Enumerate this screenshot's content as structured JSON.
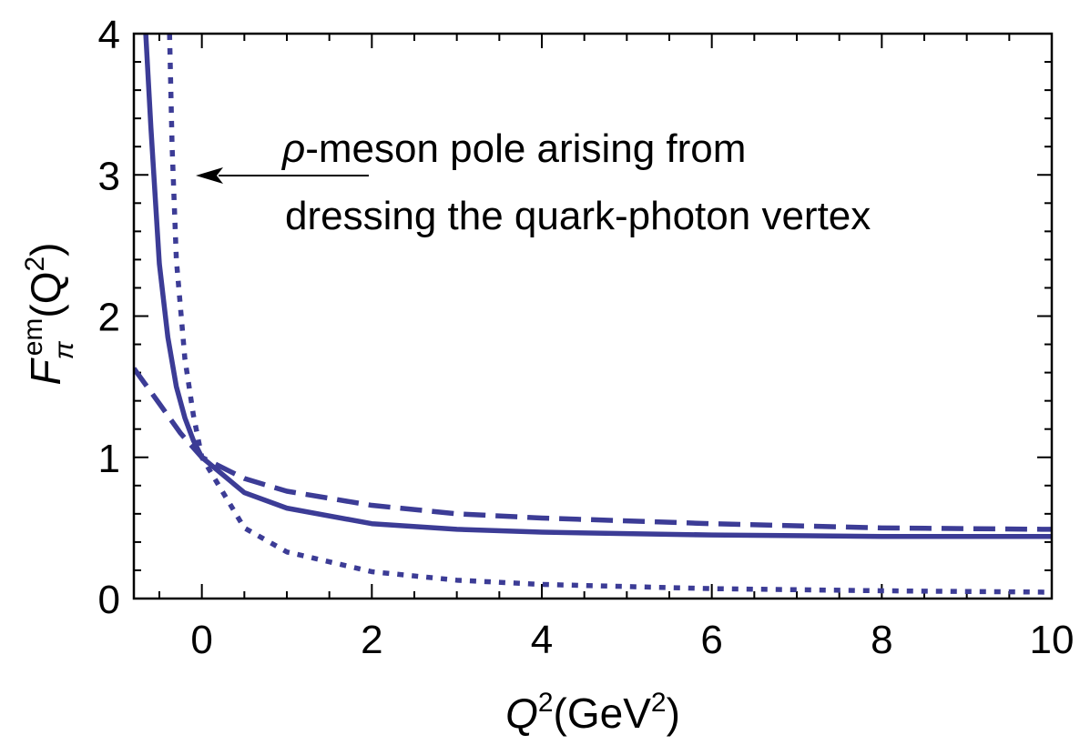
{
  "chart_data": {
    "type": "line",
    "xlabel": {
      "base": "Q",
      "sup": "2",
      "open": "(GeV",
      "unit_sup": "2",
      "close": ")"
    },
    "ylabel": {
      "base": "F",
      "sub": "π",
      "sup": "em",
      "open": "(Q",
      "arg_sup": "2",
      "close": ")"
    },
    "annotation": {
      "symbol": "ρ",
      "line1": "-meson pole arising from",
      "line2": "dressing the quark-photon vertex"
    },
    "xlim": [
      -0.8,
      10
    ],
    "ylim": [
      0,
      4
    ],
    "xticks": [
      0,
      2,
      4,
      6,
      8,
      10
    ],
    "yticks": [
      0,
      1,
      2,
      3,
      4
    ],
    "xminorticks": [
      -0.5,
      0.5,
      1,
      1.5,
      2.5,
      3,
      3.5,
      4.5,
      5,
      5.5,
      6.5,
      7,
      7.5,
      8.5,
      9,
      9.5
    ],
    "yminorticks": [
      0.2,
      0.4,
      0.6,
      0.8,
      1.2,
      1.4,
      1.6,
      1.8,
      2.2,
      2.4,
      2.6,
      2.8,
      3.2,
      3.4,
      3.6,
      3.8
    ],
    "series": [
      {
        "style": "solid",
        "color": "#3c3c96",
        "x": [
          -0.66,
          -0.6,
          -0.5,
          -0.4,
          -0.3,
          -0.2,
          -0.1,
          0,
          0.5,
          1,
          2,
          3,
          4,
          6,
          8,
          10
        ],
        "values": [
          4,
          3.34,
          2.37,
          1.85,
          1.5,
          1.28,
          1.12,
          1,
          0.75,
          0.64,
          0.53,
          0.49,
          0.47,
          0.45,
          0.44,
          0.44
        ]
      },
      {
        "style": "dashed",
        "color": "#3c3c96",
        "x": [
          -0.8,
          -0.5,
          -0.25,
          0,
          0.5,
          1,
          2,
          3,
          4,
          6,
          8,
          10
        ],
        "values": [
          1.63,
          1.38,
          1.17,
          1,
          0.85,
          0.76,
          0.66,
          0.6,
          0.57,
          0.53,
          0.5,
          0.49
        ]
      },
      {
        "style": "dotted",
        "color": "#3c3c96",
        "x": [
          -0.38,
          -0.35,
          -0.3,
          -0.2,
          -0.1,
          0,
          0.5,
          1,
          2,
          3,
          4,
          6,
          8,
          10
        ],
        "values": [
          4,
          3.2,
          2.4,
          1.7,
          1.3,
          1,
          0.5,
          0.33,
          0.19,
          0.13,
          0.1,
          0.07,
          0.055,
          0.045
        ]
      }
    ]
  }
}
